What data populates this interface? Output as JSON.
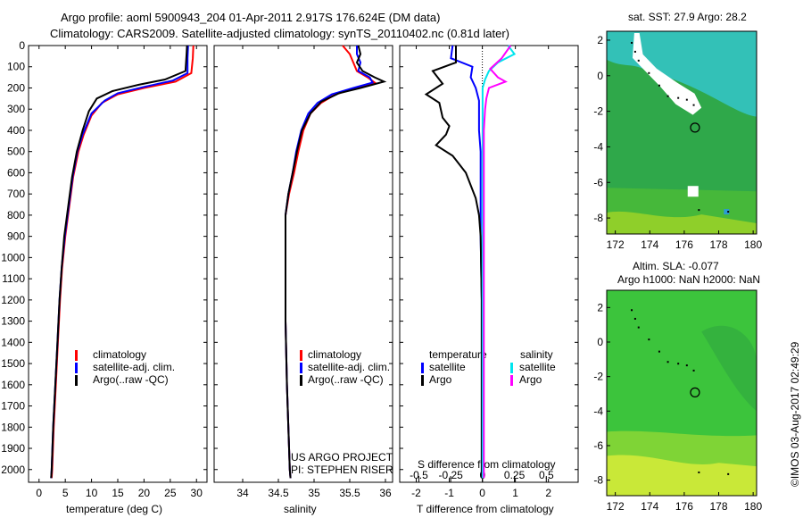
{
  "titles": {
    "line1": "Argo profile: aoml 5900943_204 01-Apr-2011 2.917S 176.624E (DM data)",
    "line2": "Climatology: CARS2009. Satellite-adjusted climatology: synTS_20110402.nc (0.81d later)"
  },
  "map_titles": {
    "sst": "sat. SST: 27.9 Argo: 28.2",
    "sla1": "Altim. SLA: -0.077",
    "sla2": "Argo h1000: NaN h2000: NaN"
  },
  "project": {
    "line1": "US ARGO PROJECT",
    "line2": "PI: STEPHEN RISER"
  },
  "timestamp": "©IMOS 03-Aug-2017 02:49:29",
  "legend_main": [
    {
      "label": "climatology",
      "color": "#ff0000"
    },
    {
      "label": "satellite-adj. clim.",
      "color": "#0000ff"
    },
    {
      "label": "Argo(..raw -QC)",
      "color": "#000000"
    }
  ],
  "legend_diff": {
    "temperature_header": "temperature",
    "salinity_header": "salinity",
    "temp_items": [
      {
        "label": "satellite",
        "color": "#0000ff"
      },
      {
        "label": "Argo",
        "color": "#000000"
      }
    ],
    "sal_items": [
      {
        "label": "satellite",
        "color": "#00e5ee"
      },
      {
        "label": "Argo",
        "color": "#ff00ff"
      }
    ]
  },
  "colors": {
    "climatology": "#ff0000",
    "satellite": "#0000ff",
    "argo": "#000000",
    "sal_satellite": "#00e5ee",
    "sal_argo": "#ff00ff",
    "sst_warm": "#2ec4b6",
    "sst_cool": "#22b04b",
    "sla_green": "#3cc43c"
  },
  "chart_data": [
    {
      "type": "line",
      "title": "",
      "xlabel": "temperature (deg C)",
      "ylabel": "",
      "xlim": [
        -2,
        32
      ],
      "ylim": [
        2060,
        0
      ],
      "x_ticks": [
        0,
        5,
        10,
        15,
        20,
        25,
        30
      ],
      "y_ticks": [
        0,
        100,
        200,
        300,
        400,
        500,
        600,
        700,
        800,
        900,
        1000,
        1100,
        1200,
        1300,
        1400,
        1500,
        1600,
        1700,
        1800,
        1900,
        2000
      ],
      "series": [
        {
          "name": "climatology",
          "color": "#ff0000",
          "points": [
            [
              29.4,
              0
            ],
            [
              29.3,
              60
            ],
            [
              29.0,
              130
            ],
            [
              26.0,
              170
            ],
            [
              20.0,
              200
            ],
            [
              15.0,
              230
            ],
            [
              12.0,
              270
            ],
            [
              10.0,
              330
            ],
            [
              8.5,
              420
            ],
            [
              7.5,
              500
            ],
            [
              6.5,
              620
            ],
            [
              5.8,
              750
            ],
            [
              5.0,
              900
            ],
            [
              4.4,
              1050
            ],
            [
              4.0,
              1200
            ],
            [
              3.6,
              1400
            ],
            [
              3.2,
              1600
            ],
            [
              2.8,
              1800
            ],
            [
              2.5,
              2000
            ],
            [
              2.4,
              2040
            ]
          ]
        },
        {
          "name": "satellite-adj. clim.",
          "color": "#0000ff",
          "points": [
            [
              28.4,
              0
            ],
            [
              28.3,
              60
            ],
            [
              28.3,
              130
            ],
            [
              25.5,
              165
            ],
            [
              20.0,
              195
            ],
            [
              15.0,
              225
            ],
            [
              12.5,
              260
            ],
            [
              10.0,
              320
            ],
            [
              8.3,
              420
            ],
            [
              7.3,
              500
            ],
            [
              6.4,
              620
            ],
            [
              5.7,
              750
            ],
            [
              4.9,
              900
            ],
            [
              4.3,
              1050
            ],
            [
              3.9,
              1200
            ],
            [
              3.5,
              1400
            ],
            [
              3.1,
              1600
            ],
            [
              2.7,
              1800
            ],
            [
              2.4,
              2000
            ],
            [
              2.3,
              2040
            ]
          ]
        },
        {
          "name": "Argo(..raw -QC)",
          "color": "#000000",
          "points": [
            [
              28.2,
              0
            ],
            [
              28.1,
              40
            ],
            [
              27.9,
              120
            ],
            [
              24.0,
              160
            ],
            [
              19.0,
              185
            ],
            [
              14.0,
              215
            ],
            [
              11.0,
              250
            ],
            [
              9.5,
              310
            ],
            [
              8.3,
              400
            ],
            [
              7.2,
              500
            ],
            [
              6.3,
              620
            ],
            [
              5.6,
              750
            ],
            [
              4.8,
              900
            ],
            [
              4.3,
              1050
            ],
            [
              3.9,
              1200
            ],
            [
              3.5,
              1400
            ],
            [
              3.1,
              1600
            ],
            [
              2.7,
              1800
            ],
            [
              2.4,
              2000
            ],
            [
              2.3,
              2040
            ]
          ]
        }
      ]
    },
    {
      "type": "line",
      "title": "",
      "xlabel": "salinity",
      "ylabel": "",
      "xlim": [
        33.6,
        36.1
      ],
      "ylim": [
        2060,
        0
      ],
      "x_ticks": [
        34,
        34.5,
        35,
        35.5,
        36
      ],
      "series": [
        {
          "name": "climatology",
          "color": "#ff0000",
          "points": [
            [
              35.4,
              0
            ],
            [
              35.5,
              40
            ],
            [
              35.55,
              80
            ],
            [
              35.6,
              120
            ],
            [
              35.75,
              150
            ],
            [
              35.85,
              175
            ],
            [
              35.6,
              200
            ],
            [
              35.3,
              230
            ],
            [
              35.1,
              270
            ],
            [
              34.95,
              320
            ],
            [
              34.85,
              400
            ],
            [
              34.78,
              500
            ],
            [
              34.72,
              600
            ],
            [
              34.65,
              700
            ],
            [
              34.6,
              800
            ],
            [
              34.6,
              1000
            ],
            [
              34.6,
              1300
            ],
            [
              34.62,
              1600
            ],
            [
              34.64,
              1800
            ],
            [
              34.66,
              2000
            ],
            [
              34.67,
              2040
            ]
          ]
        },
        {
          "name": "satellite-adj. clim.",
          "color": "#0000ff",
          "points": [
            [
              35.6,
              0
            ],
            [
              35.6,
              40
            ],
            [
              35.65,
              80
            ],
            [
              35.62,
              120
            ],
            [
              35.78,
              150
            ],
            [
              35.82,
              175
            ],
            [
              35.55,
              200
            ],
            [
              35.25,
              230
            ],
            [
              35.05,
              270
            ],
            [
              34.92,
              320
            ],
            [
              34.82,
              400
            ],
            [
              34.75,
              500
            ],
            [
              34.7,
              600
            ],
            [
              34.64,
              700
            ],
            [
              34.6,
              800
            ],
            [
              34.6,
              1000
            ],
            [
              34.6,
              1300
            ],
            [
              34.62,
              1600
            ],
            [
              34.64,
              1800
            ],
            [
              34.66,
              2000
            ],
            [
              34.67,
              2040
            ]
          ]
        },
        {
          "name": "Argo(..raw -QC)",
          "color": "#000000",
          "points": [
            [
              35.62,
              0
            ],
            [
              35.65,
              40
            ],
            [
              35.6,
              80
            ],
            [
              35.68,
              120
            ],
            [
              35.85,
              150
            ],
            [
              35.98,
              170
            ],
            [
              35.65,
              200
            ],
            [
              35.35,
              225
            ],
            [
              35.1,
              265
            ],
            [
              34.95,
              320
            ],
            [
              34.83,
              400
            ],
            [
              34.76,
              500
            ],
            [
              34.7,
              600
            ],
            [
              34.64,
              700
            ],
            [
              34.6,
              800
            ],
            [
              34.6,
              1000
            ],
            [
              34.6,
              1300
            ],
            [
              34.62,
              1600
            ],
            [
              34.64,
              1800
            ],
            [
              34.66,
              2000
            ],
            [
              34.67,
              2040
            ]
          ]
        }
      ]
    },
    {
      "type": "line",
      "title": "",
      "xlabel": "T difference from climatology",
      "x2label": "S difference from climatology",
      "ylabel": "",
      "xlim": [
        -2.5,
        2.9
      ],
      "x2lim": [
        -0.65,
        0.75
      ],
      "ylim": [
        2060,
        0
      ],
      "x_ticks": [
        -2,
        -1,
        0,
        1,
        2
      ],
      "x2_ticks": [
        -0.5,
        -0.25,
        0,
        0.25,
        0.5
      ],
      "x2_tick_labels": [
        "-0.5",
        "-0.25",
        "0",
        "0.25",
        "0.5"
      ],
      "series": [
        {
          "name": "temperature satellite",
          "color": "#0000ff",
          "axis": "T",
          "points": [
            [
              -0.9,
              0
            ],
            [
              -0.95,
              60
            ],
            [
              -0.3,
              100
            ],
            [
              -0.35,
              150
            ],
            [
              -0.2,
              200
            ],
            [
              -0.1,
              260
            ],
            [
              -0.1,
              400
            ],
            [
              -0.05,
              500
            ],
            [
              -0.05,
              700
            ],
            [
              -0.05,
              900
            ],
            [
              -0.02,
              1200
            ],
            [
              -0.02,
              1600
            ],
            [
              -0.02,
              2040
            ]
          ]
        },
        {
          "name": "temperature Argo",
          "color": "#000000",
          "axis": "T",
          "points": [
            [
              -0.8,
              0
            ],
            [
              -0.8,
              80
            ],
            [
              -1.5,
              120
            ],
            [
              -1.2,
              180
            ],
            [
              -1.7,
              230
            ],
            [
              -1.3,
              270
            ],
            [
              -1.2,
              340
            ],
            [
              -1.0,
              380
            ],
            [
              -1.1,
              420
            ],
            [
              -1.4,
              470
            ],
            [
              -0.9,
              520
            ],
            [
              -0.5,
              600
            ],
            [
              -0.2,
              720
            ],
            [
              -0.1,
              800
            ],
            [
              -0.05,
              900
            ],
            [
              -0.02,
              1200
            ],
            [
              -0.02,
              2040
            ]
          ]
        },
        {
          "name": "salinity satellite",
          "color": "#00e5ee",
          "axis": "S",
          "points": [
            [
              0.2,
              0
            ],
            [
              0.25,
              40
            ],
            [
              0.12,
              80
            ],
            [
              0.05,
              120
            ],
            [
              0.02,
              160
            ],
            [
              0.0,
              200
            ],
            [
              0.0,
              400
            ],
            [
              0.0,
              800
            ],
            [
              0.0,
              1200
            ],
            [
              0.0,
              1600
            ],
            [
              0.0,
              2040
            ]
          ]
        },
        {
          "name": "salinity Argo",
          "color": "#ff00ff",
          "axis": "S",
          "points": [
            [
              0.22,
              0
            ],
            [
              0.15,
              60
            ],
            [
              0.06,
              110
            ],
            [
              0.12,
              150
            ],
            [
              0.18,
              170
            ],
            [
              0.05,
              200
            ],
            [
              0.03,
              250
            ],
            [
              0.02,
              300
            ],
            [
              0.01,
              400
            ],
            [
              0.01,
              900
            ],
            [
              0.01,
              2040
            ]
          ]
        }
      ]
    },
    {
      "type": "heatmap",
      "title": "sat. SST: 27.9 Argo: 28.2",
      "xlim": [
        171.5,
        180.2
      ],
      "ylim": [
        -8.9,
        2.5
      ],
      "x_ticks": [
        172,
        174,
        176,
        178,
        180
      ],
      "y_ticks": [
        -8,
        -6,
        -4,
        -2,
        0,
        2
      ],
      "argo_position": [
        176.624,
        -2.917
      ]
    },
    {
      "type": "heatmap",
      "title": "Altim. SLA: -0.077",
      "xlim": [
        171.5,
        180.2
      ],
      "ylim": [
        -8.9,
        3.0
      ],
      "x_ticks": [
        172,
        174,
        176,
        178,
        180
      ],
      "y_ticks": [
        -8,
        -6,
        -4,
        -2,
        0,
        2
      ],
      "argo_position": [
        176.624,
        -2.917
      ]
    }
  ]
}
